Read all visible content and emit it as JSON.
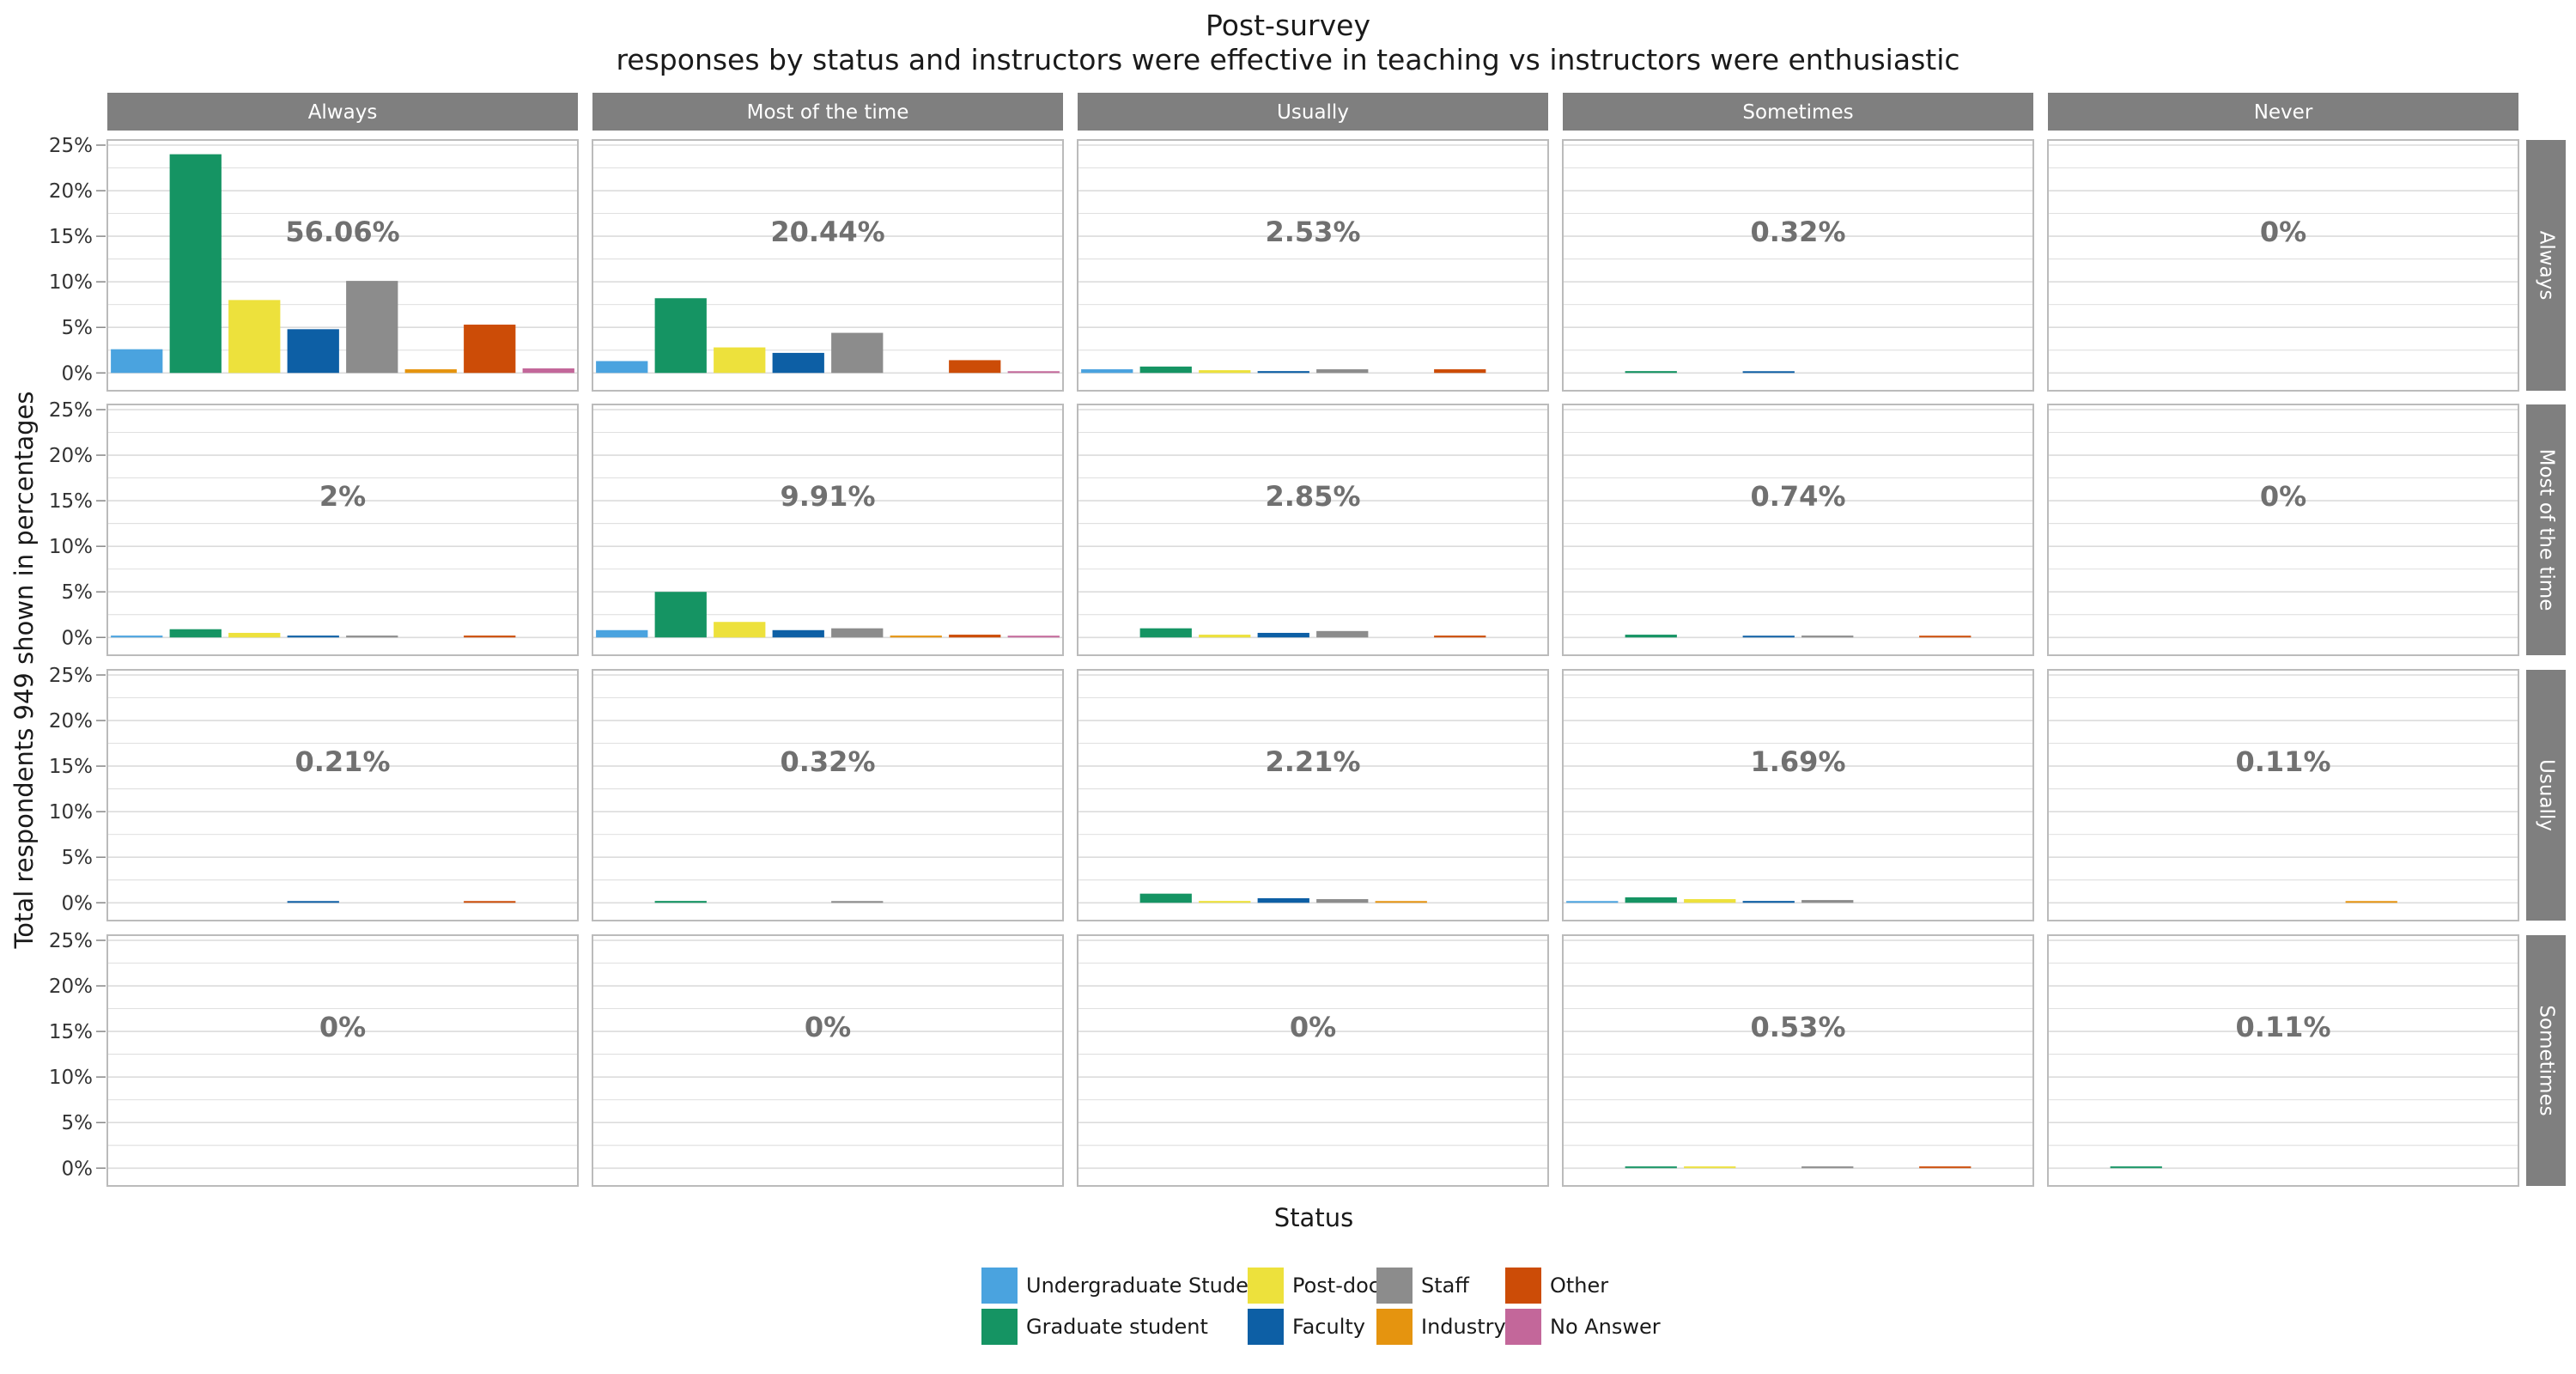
{
  "chart_data": {
    "type": "bar",
    "title": "Post-survey",
    "subtitle": "responses by status and instructors were effective in teaching vs instructors were enthusiastic",
    "xlabel": "Status",
    "ylabel": "Total respondents 949 shown in percentages",
    "ylim": [
      0,
      25
    ],
    "y_ticks": [
      "0%",
      "5%",
      "10%",
      "15%",
      "20%",
      "25%"
    ],
    "grid": true,
    "legend_position": "bottom",
    "column_facets": [
      "Always",
      "Most of the time",
      "Usually",
      "Sometimes",
      "Never"
    ],
    "row_facets": [
      "Always",
      "Most of the time",
      "Usually",
      "Sometimes"
    ],
    "series": [
      {
        "name": "Undergraduate Student",
        "color": "#4aa3df"
      },
      {
        "name": "Graduate student",
        "color": "#159463"
      },
      {
        "name": "Post-doc",
        "color": "#ede13c"
      },
      {
        "name": "Faculty",
        "color": "#0d5fa5"
      },
      {
        "name": "Staff",
        "color": "#8c8c8c"
      },
      {
        "name": "Industry",
        "color": "#e5940f"
      },
      {
        "name": "Other",
        "color": "#cc4c07"
      },
      {
        "name": "No Answer",
        "color": "#c3679a"
      }
    ],
    "panels": [
      {
        "row": "Always",
        "col": "Always",
        "total_label": "56.06%",
        "values": [
          2.6,
          24.0,
          8.0,
          4.8,
          10.1,
          0.4,
          5.3,
          0.5
        ]
      },
      {
        "row": "Always",
        "col": "Most of the time",
        "total_label": "20.44%",
        "values": [
          1.3,
          8.2,
          2.8,
          2.2,
          4.4,
          0,
          1.4,
          0.1
        ]
      },
      {
        "row": "Always",
        "col": "Usually",
        "total_label": "2.53%",
        "values": [
          0.4,
          0.7,
          0.3,
          0.2,
          0.4,
          0,
          0.4,
          0
        ]
      },
      {
        "row": "Always",
        "col": "Sometimes",
        "total_label": "0.32%",
        "values": [
          0,
          0.2,
          0,
          0.1,
          0,
          0,
          0,
          0
        ]
      },
      {
        "row": "Always",
        "col": "Never",
        "total_label": "0%",
        "values": [
          0,
          0,
          0,
          0,
          0,
          0,
          0,
          0
        ]
      },
      {
        "row": "Most of the time",
        "col": "Always",
        "total_label": "2%",
        "values": [
          0.2,
          0.9,
          0.5,
          0.2,
          0.2,
          0,
          0.2,
          0
        ]
      },
      {
        "row": "Most of the time",
        "col": "Most of the time",
        "total_label": "9.91%",
        "values": [
          0.8,
          5.0,
          1.7,
          0.8,
          1.0,
          0.2,
          0.3,
          0.1
        ]
      },
      {
        "row": "Most of the time",
        "col": "Usually",
        "total_label": "2.85%",
        "values": [
          0,
          1.0,
          0.3,
          0.5,
          0.7,
          0,
          0.2,
          0
        ]
      },
      {
        "row": "Most of the time",
        "col": "Sometimes",
        "total_label": "0.74%",
        "values": [
          0,
          0.3,
          0,
          0.1,
          0.2,
          0,
          0.1,
          0
        ]
      },
      {
        "row": "Most of the time",
        "col": "Never",
        "total_label": "0%",
        "values": [
          0,
          0,
          0,
          0,
          0,
          0,
          0,
          0
        ]
      },
      {
        "row": "Usually",
        "col": "Always",
        "total_label": "0.21%",
        "values": [
          0,
          0,
          0,
          0.1,
          0,
          0,
          0.1,
          0
        ]
      },
      {
        "row": "Usually",
        "col": "Most of the time",
        "total_label": "0.32%",
        "values": [
          0,
          0.2,
          0,
          0,
          0.1,
          0,
          0,
          0
        ]
      },
      {
        "row": "Usually",
        "col": "Usually",
        "total_label": "2.21%",
        "values": [
          0,
          1.0,
          0.2,
          0.5,
          0.4,
          0.1,
          0,
          0
        ]
      },
      {
        "row": "Usually",
        "col": "Sometimes",
        "total_label": "1.69%",
        "values": [
          0.1,
          0.6,
          0.4,
          0.2,
          0.3,
          0,
          0,
          0
        ]
      },
      {
        "row": "Usually",
        "col": "Never",
        "total_label": "0.11%",
        "values": [
          0,
          0,
          0,
          0,
          0,
          0.1,
          0,
          0
        ]
      },
      {
        "row": "Sometimes",
        "col": "Always",
        "total_label": "0%",
        "values": [
          0,
          0,
          0,
          0,
          0,
          0,
          0,
          0
        ]
      },
      {
        "row": "Sometimes",
        "col": "Most of the time",
        "total_label": "0%",
        "values": [
          0,
          0,
          0,
          0,
          0,
          0,
          0,
          0
        ]
      },
      {
        "row": "Sometimes",
        "col": "Usually",
        "total_label": "0%",
        "values": [
          0,
          0,
          0,
          0,
          0,
          0,
          0,
          0
        ]
      },
      {
        "row": "Sometimes",
        "col": "Sometimes",
        "total_label": "0.53%",
        "values": [
          0,
          0.1,
          0.1,
          0,
          0.1,
          0,
          0.1,
          0
        ]
      },
      {
        "row": "Sometimes",
        "col": "Never",
        "total_label": "0.11%",
        "values": [
          0,
          0.1,
          0,
          0,
          0,
          0,
          0,
          0
        ]
      }
    ]
  }
}
